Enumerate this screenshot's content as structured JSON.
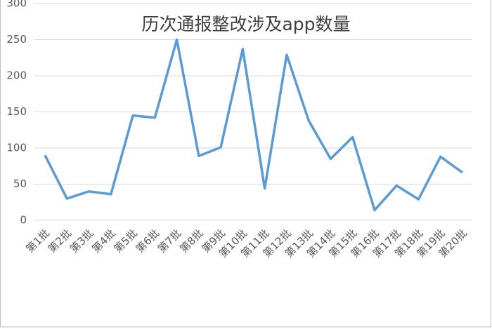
{
  "chart_data": {
    "type": "line",
    "title": "历次通报整改涉及app数量",
    "categories": [
      "第1批",
      "第2批",
      "第3批",
      "第4批",
      "第5批",
      "第6批",
      "第7批",
      "第8批",
      "第9批",
      "第10批",
      "第11批",
      "第12批",
      "第13批",
      "第14批",
      "第15批",
      "第16批",
      "第17批",
      "第18批",
      "第19批",
      "第20批"
    ],
    "series": [
      {
        "name": "涉及app数量",
        "color": "#5b9bd5",
        "values": [
          90,
          30,
          40,
          36,
          145,
          142,
          250,
          89,
          101,
          237,
          44,
          229,
          138,
          85,
          115,
          14,
          48,
          29,
          88,
          66
        ]
      }
    ],
    "ylim": [
      0,
      300
    ],
    "yticks": [
      0,
      50,
      100,
      150,
      200,
      250,
      300
    ],
    "grid": true
  }
}
